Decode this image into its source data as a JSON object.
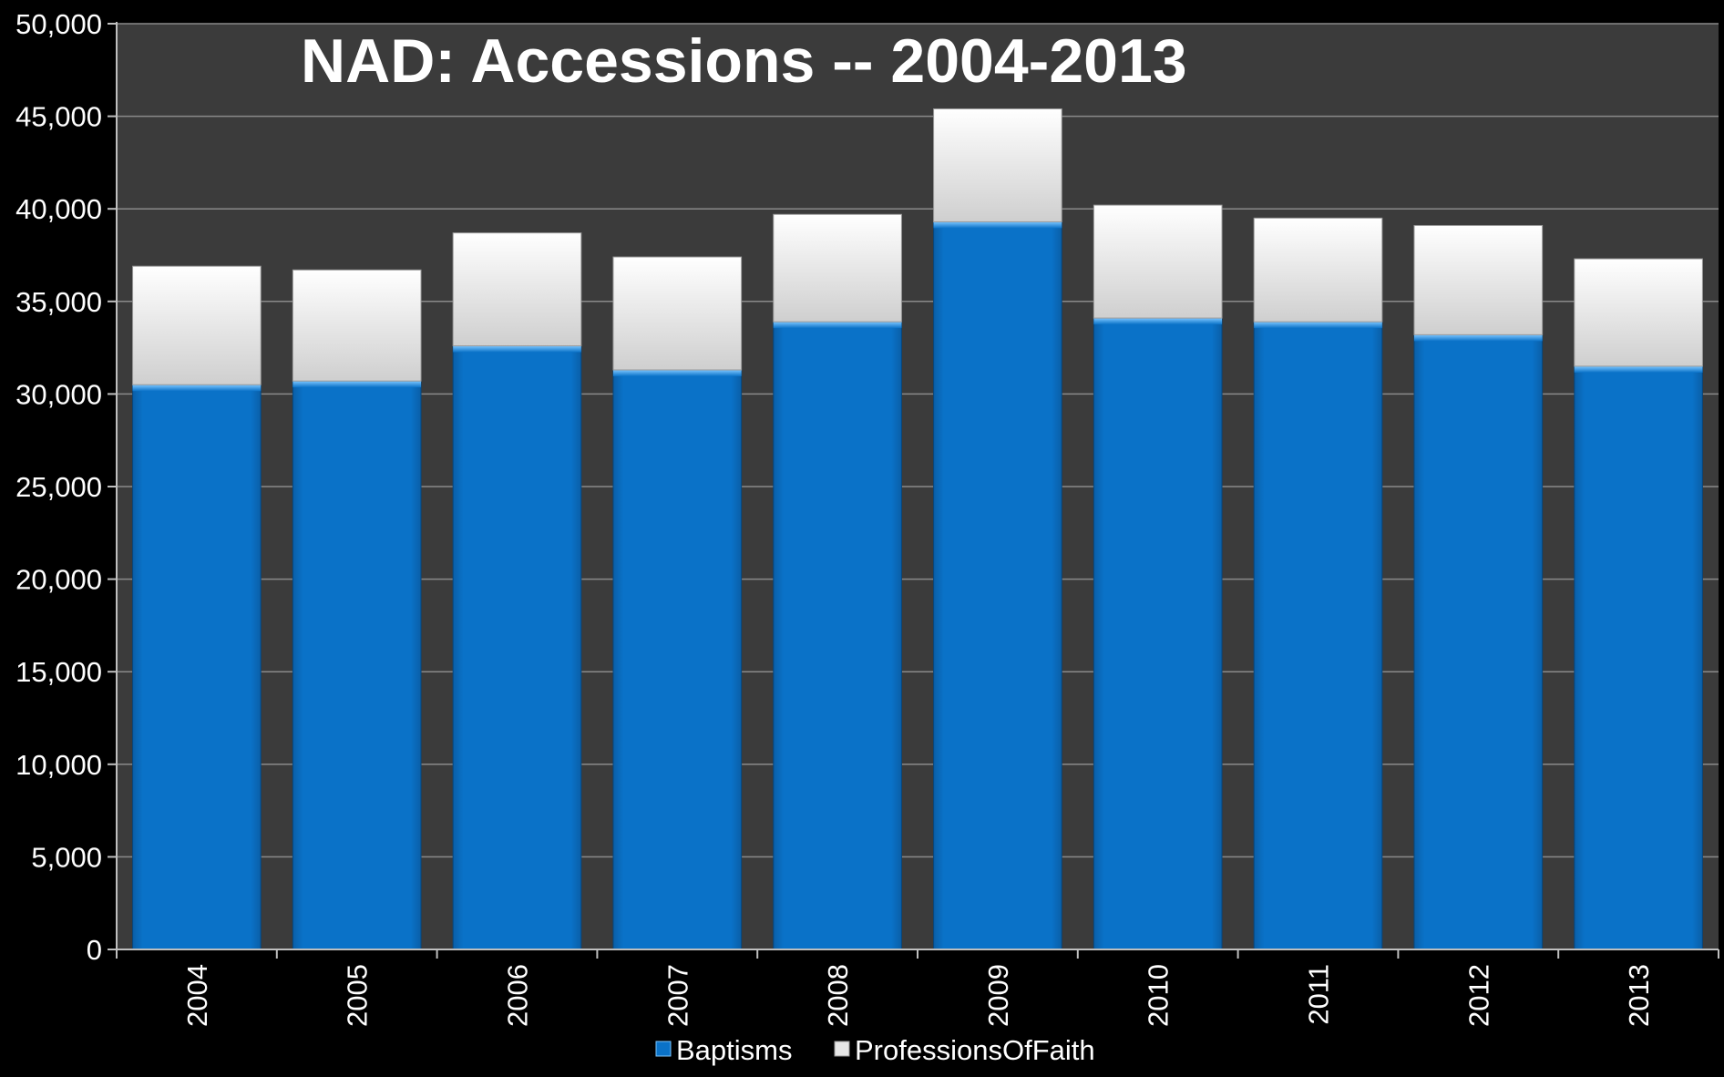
{
  "chart_data": {
    "type": "bar",
    "stacked": true,
    "title": "NAD:  Accessions -- 2004-2013",
    "xlabel": "",
    "ylabel": "",
    "categories": [
      "2004",
      "2005",
      "2006",
      "2007",
      "2008",
      "2009",
      "2010",
      "2011",
      "2012",
      "2013"
    ],
    "ylim": [
      0,
      50000
    ],
    "yticks": [
      0,
      5000,
      10000,
      15000,
      20000,
      25000,
      30000,
      35000,
      40000,
      45000,
      50000
    ],
    "ytick_labels": [
      "0",
      "5,000",
      "10,000",
      "15,000",
      "20,000",
      "25,000",
      "30,000",
      "35,000",
      "40,000",
      "45,000",
      "50,000"
    ],
    "grid": true,
    "legend_position": "bottom",
    "series": [
      {
        "name": "Baptisms",
        "color": "#0a72c8",
        "values": [
          30500,
          30700,
          32600,
          31300,
          33900,
          39300,
          34100,
          33900,
          33200,
          31500
        ]
      },
      {
        "name": "ProfessionsOfFaith",
        "color": "#e6e6e6",
        "values": [
          6400,
          6000,
          6100,
          6100,
          5800,
          6100,
          6100,
          5600,
          5900,
          5800
        ]
      }
    ],
    "colors": {
      "background": "#000000",
      "plot_area": "#3b3b3b",
      "grid": "#8a8a8a",
      "axis": "#bfbfbf",
      "text": "#ffffff"
    }
  }
}
